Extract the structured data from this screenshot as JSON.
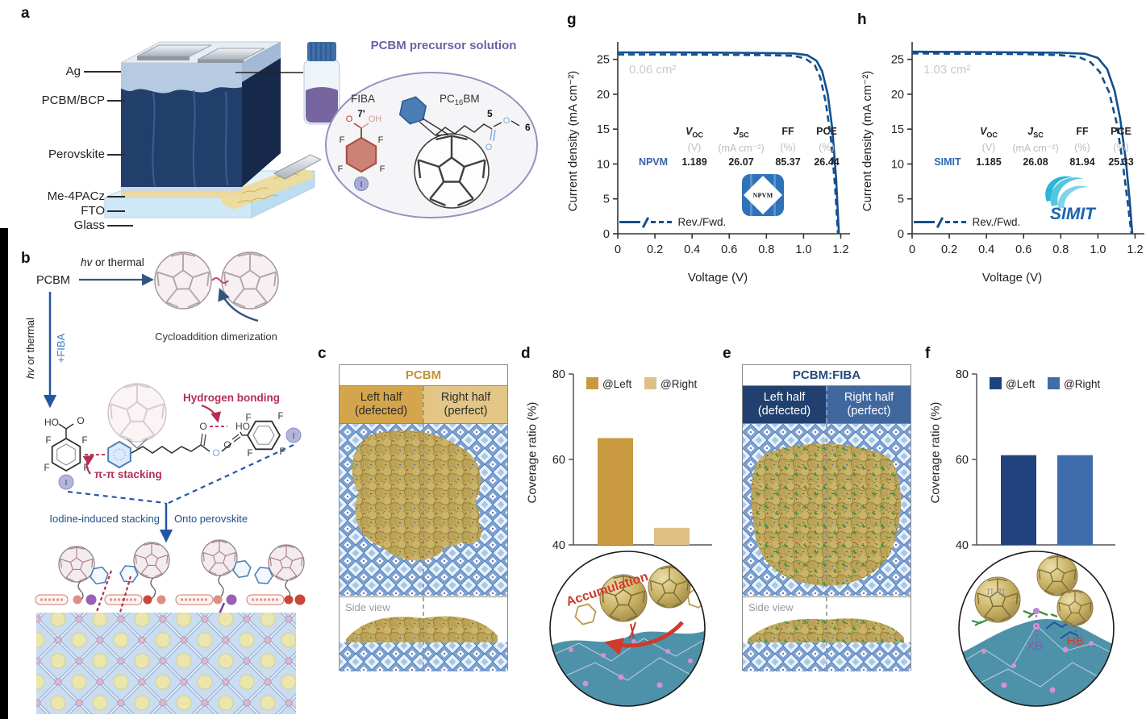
{
  "panel_labels": {
    "a": "a",
    "b": "b",
    "c": "c",
    "d": "d",
    "e": "e",
    "f": "f",
    "g": "g",
    "h": "h"
  },
  "panel_a": {
    "layers": [
      "Ag",
      "PCBM/BCP",
      "Perovskite",
      "Me-4PACz",
      "FTO",
      "Glass"
    ],
    "solution_title": "PCBM precursor solution",
    "fiba": {
      "name": "FIBA",
      "c7": "7'",
      "F": "F",
      "I": "I",
      "O": "O",
      "OH": "OH"
    },
    "pcbm": {
      "p1": "PC",
      "sub": "16",
      "p2": "BM",
      "c5": "5",
      "c6": "6",
      "O": "O"
    }
  },
  "panel_b": {
    "pcbm": "PCBM",
    "hv_h": {
      "hv": "hv",
      "rest": " or thermal"
    },
    "hv_v": {
      "hv": "hv",
      "rest": " or thermal"
    },
    "plus_fiba": "+FIBA",
    "cycloaddition": "Cycloaddition dimerization",
    "hbond": "Hydrogen bonding",
    "pipi": "π-π stacking",
    "iodine": "Iodine-induced stacking",
    "onto": "Onto perovskite",
    "atoms": {
      "HO": "HO",
      "O": "O",
      "F": "F",
      "I": "I"
    }
  },
  "panel_c": {
    "title": "PCBM",
    "left1": "Left half",
    "left2": "(defected)",
    "right1": "Right half",
    "right2": "(perfect)",
    "side": "Side view"
  },
  "panel_d": {
    "ylabel": "Coverage ratio (%)",
    "annotation": "Accumulation"
  },
  "panel_e": {
    "title": "PCBM:FIBA",
    "left1": "Left half",
    "left2": "(defected)",
    "right1": "Right half",
    "right2": "(perfect)",
    "side": "Side view"
  },
  "panel_f": {
    "ylabel": "Coverage ratio (%)",
    "ann_pipi": "π-π",
    "ann_xb": "XB",
    "ann_hb": "HB"
  },
  "panel_g": {
    "area": "0.06 cm²",
    "xlabel": "Voltage (V)",
    "ylabel": "Current density (mA cm⁻²)",
    "legend": "Rev./Fwd.",
    "device": "NPVM",
    "logo": "NPVM",
    "h_voc_b": "V",
    "h_voc_s": "OC",
    "h_jsc_b": "J",
    "h_jsc_s": "SC",
    "h_ff": "FF",
    "h_pce": "PCE",
    "u_v": "(V)",
    "u_j": "(mA cm⁻²)",
    "u_ff": "(%)",
    "u_pce": "(%)",
    "voc": "1.189",
    "jsc": "26.07",
    "ff": "85.37",
    "pce": "26.44"
  },
  "panel_h": {
    "area": "1.03 cm²",
    "xlabel": "Voltage (V)",
    "ylabel": "Current density (mA cm⁻²)",
    "legend": "Rev./Fwd.",
    "device": "SIMIT",
    "logo": "SIMIT",
    "h_voc_b": "V",
    "h_voc_s": "OC",
    "h_jsc_b": "J",
    "h_jsc_s": "SC",
    "h_ff": "FF",
    "h_pce": "PCE",
    "u_v": "(V)",
    "u_j": "(mA cm⁻²)",
    "u_ff": "(%)",
    "u_pce": "(%)",
    "voc": "1.185",
    "jsc": "26.08",
    "ff": "81.94",
    "pce": "25.33"
  },
  "chart_data": [
    {
      "id": "d",
      "type": "bar",
      "categories": [
        "@Left",
        "@Right"
      ],
      "values": [
        65,
        44
      ],
      "colors": [
        "#c8993f",
        "#dfc084"
      ],
      "title": "",
      "xlabel": "",
      "ylabel": "Coverage ratio (%)",
      "ylim": [
        40,
        80
      ],
      "yticks": [
        40,
        60,
        80
      ],
      "grid": false,
      "legend_position": "top"
    },
    {
      "id": "f",
      "type": "bar",
      "categories": [
        "@Left",
        "@Right"
      ],
      "values": [
        61,
        61
      ],
      "colors": [
        "#21427c",
        "#3e6cac"
      ],
      "title": "",
      "xlabel": "",
      "ylabel": "Coverage ratio (%)",
      "ylim": [
        40,
        80
      ],
      "yticks": [
        40,
        60,
        80
      ],
      "grid": false,
      "legend_position": "top"
    },
    {
      "id": "g",
      "type": "line",
      "title": "",
      "xlabel": "Voltage (V)",
      "ylabel": "Current density (mA cm⁻²)",
      "xlim": [
        0,
        1.25
      ],
      "ylim": [
        0,
        27.5
      ],
      "xticks": [
        0,
        0.2,
        0.4,
        0.6,
        0.8,
        1.0,
        1.2
      ],
      "xtick_labels": [
        "0",
        "0.2",
        "0.4",
        "0.6",
        "0.8",
        "1.0",
        "1.2"
      ],
      "yticks": [
        0,
        5,
        10,
        15,
        20,
        25
      ],
      "grid": false,
      "area_label": "0.06 cm²",
      "device": "NPVM",
      "params": {
        "Voc_V": 1.189,
        "Jsc_mA_cm2": 26.07,
        "FF_pct": 85.37,
        "PCE_pct": 26.44
      },
      "series": [
        {
          "name": "Rev.",
          "style": "solid",
          "points": [
            [
              0,
              26.0
            ],
            [
              0.3,
              26.0
            ],
            [
              0.6,
              25.95
            ],
            [
              0.8,
              25.9
            ],
            [
              0.95,
              25.85
            ],
            [
              1.02,
              25.6
            ],
            [
              1.07,
              24.8
            ],
            [
              1.1,
              23.3
            ],
            [
              1.13,
              20.0
            ],
            [
              1.155,
              15.0
            ],
            [
              1.175,
              8.0
            ],
            [
              1.19,
              0
            ]
          ]
        },
        {
          "name": "Fwd.",
          "style": "dashed",
          "points": [
            [
              0,
              25.7
            ],
            [
              0.3,
              25.7
            ],
            [
              0.6,
              25.65
            ],
            [
              0.8,
              25.6
            ],
            [
              0.95,
              25.5
            ],
            [
              1.01,
              25.1
            ],
            [
              1.06,
              24.2
            ],
            [
              1.09,
              22.4
            ],
            [
              1.12,
              18.8
            ],
            [
              1.15,
              13.0
            ],
            [
              1.17,
              6.5
            ],
            [
              1.185,
              0
            ]
          ]
        }
      ]
    },
    {
      "id": "h",
      "type": "line",
      "title": "",
      "xlabel": "Voltage (V)",
      "ylabel": "Current density (mA cm⁻²)",
      "xlim": [
        0,
        1.25
      ],
      "ylim": [
        0,
        27.5
      ],
      "xticks": [
        0,
        0.2,
        0.4,
        0.6,
        0.8,
        1.0,
        1.2
      ],
      "xtick_labels": [
        "0",
        "0.2",
        "0.4",
        "0.6",
        "0.8",
        "1.0",
        "1.2"
      ],
      "yticks": [
        0,
        5,
        10,
        15,
        20,
        25
      ],
      "grid": false,
      "area_label": "1.03 cm²",
      "device": "SIMIT",
      "params": {
        "Voc_V": 1.185,
        "Jsc_mA_cm2": 26.08,
        "FF_pct": 81.94,
        "PCE_pct": 25.33
      },
      "series": [
        {
          "name": "Rev.",
          "style": "solid",
          "points": [
            [
              0,
              26.1
            ],
            [
              0.3,
              26.05
            ],
            [
              0.6,
              26.0
            ],
            [
              0.8,
              25.95
            ],
            [
              0.93,
              25.8
            ],
            [
              1.0,
              25.2
            ],
            [
              1.05,
              23.6
            ],
            [
              1.09,
              20.5
            ],
            [
              1.12,
              16.5
            ],
            [
              1.15,
              10.5
            ],
            [
              1.17,
              5.0
            ],
            [
              1.185,
              0
            ]
          ]
        },
        {
          "name": "Fwd.",
          "style": "dashed",
          "points": [
            [
              0,
              25.85
            ],
            [
              0.3,
              25.8
            ],
            [
              0.6,
              25.75
            ],
            [
              0.8,
              25.6
            ],
            [
              0.9,
              25.3
            ],
            [
              0.96,
              24.6
            ],
            [
              1.01,
              23.2
            ],
            [
              1.06,
              20.3
            ],
            [
              1.1,
              16.0
            ],
            [
              1.13,
              10.8
            ],
            [
              1.16,
              4.5
            ],
            [
              1.18,
              0
            ]
          ]
        }
      ]
    }
  ]
}
